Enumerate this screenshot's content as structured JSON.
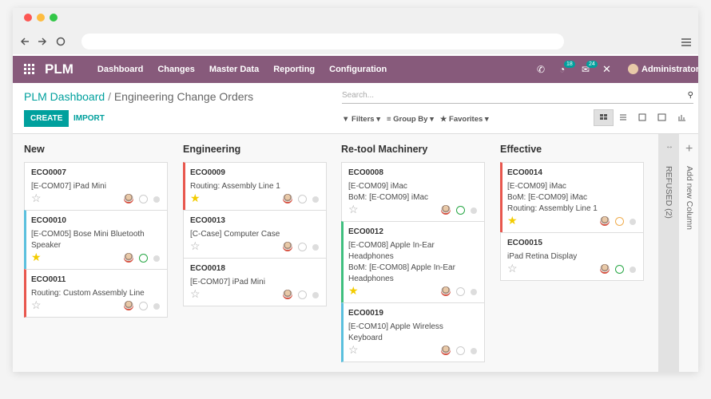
{
  "navbar": {
    "app": "PLM",
    "menu": [
      "Dashboard",
      "Changes",
      "Master Data",
      "Reporting",
      "Configuration"
    ],
    "badges": [
      18,
      24
    ],
    "user": "Administrator"
  },
  "breadcrumb": {
    "parent": "PLM Dashboard",
    "current": "Engineering Change Orders"
  },
  "search_placeholder": "Search...",
  "buttons": [
    "CREATE",
    "IMPORT"
  ],
  "filters": [
    "Filters",
    "Group By",
    "Favorites"
  ],
  "columns": [
    {
      "title": "New",
      "cards": [
        {
          "ref": "ECO0007",
          "lines": [
            "[E-COM07] iPad Mini"
          ],
          "starred": false,
          "clock": "#ccc",
          "border": null
        },
        {
          "ref": "ECO0010",
          "lines": [
            "[E-COM05] Bose Mini Bluetooth Speaker"
          ],
          "starred": true,
          "clock": "#28a745",
          "border": "#5bc0de"
        },
        {
          "ref": "ECO0011",
          "lines": [
            "Routing: Custom Assembly Line"
          ],
          "starred": false,
          "clock": "#ccc",
          "border": "#e8574e"
        }
      ]
    },
    {
      "title": "Engineering",
      "cards": [
        {
          "ref": "ECO0009",
          "lines": [
            "Routing: Assembly Line 1"
          ],
          "starred": true,
          "clock": "#ccc",
          "border": "#e8574e"
        },
        {
          "ref": "ECO0013",
          "lines": [
            "[C-Case] Computer Case"
          ],
          "starred": false,
          "clock": "#ccc",
          "border": null
        },
        {
          "ref": "ECO0018",
          "lines": [
            "[E-COM07] iPad Mini"
          ],
          "starred": false,
          "clock": "#ccc",
          "border": null
        }
      ]
    },
    {
      "title": "Re-tool Machinery",
      "cards": [
        {
          "ref": "ECO0008",
          "lines": [
            "[E-COM09] iMac",
            "BoM: [E-COM09] iMac"
          ],
          "starred": false,
          "clock": "#28a745",
          "border": null
        },
        {
          "ref": "ECO0012",
          "lines": [
            "[E-COM08] Apple In-Ear Headphones",
            "BoM: [E-COM08] Apple In-Ear Headphones"
          ],
          "starred": true,
          "clock": "#ccc",
          "border": "#3fbf7f"
        },
        {
          "ref": "ECO0019",
          "lines": [
            "[E-COM10] Apple Wireless Keyboard"
          ],
          "starred": false,
          "clock": "#ccc",
          "border": "#5bc0de"
        }
      ]
    },
    {
      "title": "Effective",
      "cards": [
        {
          "ref": "ECO0014",
          "lines": [
            "[E-COM09] iMac",
            "BoM: [E-COM09] iMac",
            "Routing: Assembly Line 1"
          ],
          "starred": true,
          "clock": "#f0ad4e",
          "border": "#e8574e"
        },
        {
          "ref": "ECO0015",
          "lines": [
            "iPad Retina Display"
          ],
          "starred": false,
          "clock": "#28a745",
          "border": null
        }
      ]
    }
  ],
  "folded": "REFUSED (2)",
  "add_column": "Add new Column"
}
